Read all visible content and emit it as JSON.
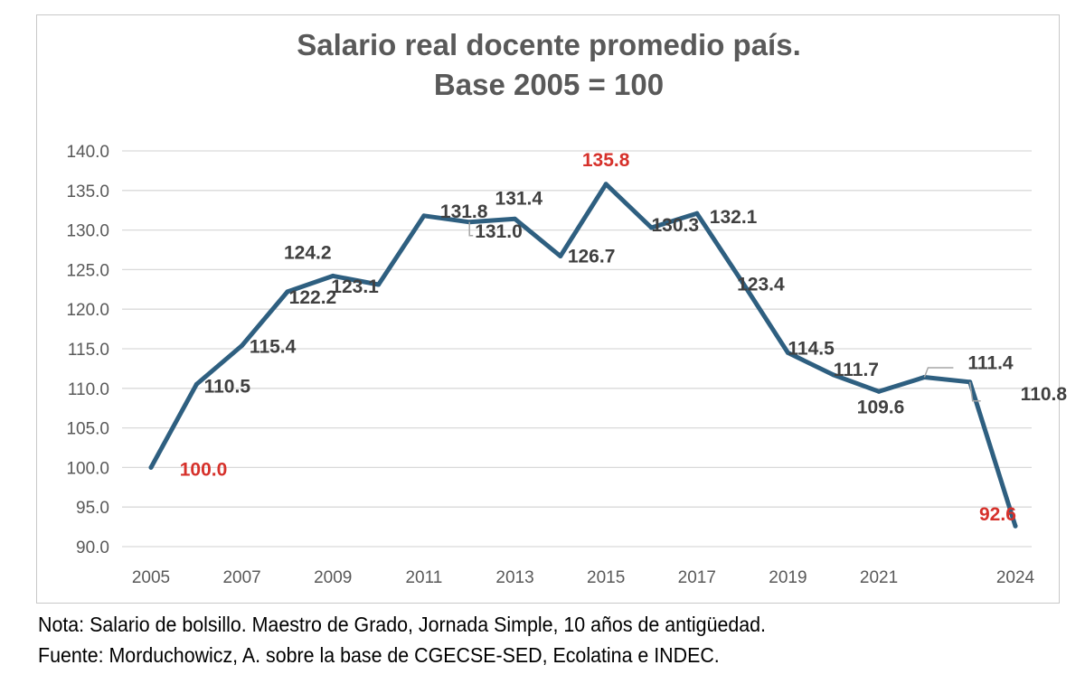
{
  "chart_data": {
    "type": "line",
    "title": [
      "Salario real docente promedio país.",
      "Base 2005 = 100"
    ],
    "xlabel": "",
    "ylabel": "",
    "ylim": [
      90,
      140
    ],
    "yticks": [
      "90.0",
      "95.0",
      "100.0",
      "105.0",
      "110.0",
      "115.0",
      "120.0",
      "125.0",
      "130.0",
      "135.0",
      "140.0"
    ],
    "xtick_labels": [
      {
        "x": 2005,
        "label": "2005"
      },
      {
        "x": 2007,
        "label": "2007"
      },
      {
        "x": 2009,
        "label": "2009"
      },
      {
        "x": 2011,
        "label": "2011"
      },
      {
        "x": 2013,
        "label": "2013"
      },
      {
        "x": 2015,
        "label": "2015"
      },
      {
        "x": 2017,
        "label": "2017"
      },
      {
        "x": 2019,
        "label": "2019"
      },
      {
        "x": 2021,
        "label": "2021"
      },
      {
        "x": 2024,
        "label": "2024"
      }
    ],
    "grid": true,
    "line_color": "#2e5f80",
    "highlight_color": "#d6312b",
    "series": [
      {
        "x": [
          2005,
          2006,
          2007,
          2008,
          2009,
          2010,
          2011,
          2012,
          2013,
          2014,
          2015,
          2016,
          2017,
          2018,
          2019,
          2020,
          2021,
          2022,
          2023,
          2024
        ],
        "values": [
          100.0,
          110.5,
          115.4,
          122.2,
          124.2,
          123.1,
          131.8,
          131.0,
          131.4,
          126.7,
          135.8,
          130.3,
          132.1,
          123.4,
          114.5,
          111.7,
          109.6,
          111.4,
          110.8,
          92.6
        ],
        "labels": [
          "100.0",
          "110.5",
          "115.4",
          "122.2",
          "124.2",
          "123.1",
          "131.8",
          "131.0",
          "131.4",
          "126.7",
          "135.8",
          "130.3",
          "132.1",
          "123.4",
          "114.5",
          "111.7",
          "109.6",
          "111.4",
          "110.8",
          "92.6"
        ],
        "highlighted": [
          true,
          false,
          false,
          false,
          false,
          false,
          false,
          false,
          false,
          false,
          true,
          false,
          false,
          false,
          false,
          false,
          false,
          false,
          false,
          true
        ]
      }
    ]
  },
  "notes": {
    "nota": "Nota: Salario de bolsillo. Maestro de Grado, Jornada Simple, 10 años de antigüedad.",
    "fuente": "Fuente: Morduchowicz, A. sobre la base de CGECSE-SED, Ecolatina e INDEC."
  }
}
